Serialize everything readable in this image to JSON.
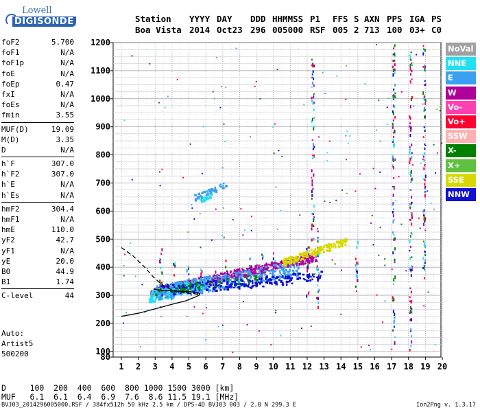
{
  "logo": {
    "top": "Lowell",
    "bottom": "DIGISONDE"
  },
  "header": {
    "row1": [
      "Station",
      "YYYY",
      "DAY",
      "DDD",
      "HHMMSS",
      "P1",
      "FFS",
      "S",
      "AXN",
      "PPS",
      "IGA",
      "PS"
    ],
    "row2": [
      "Boa Vista",
      "2014",
      "Oct23",
      "296",
      "005000",
      "RSF",
      "005",
      "2",
      "713",
      "100",
      "03+",
      "C0"
    ]
  },
  "params": [
    [
      {
        "k": "foF2",
        "v": "5.700"
      },
      {
        "k": "foF1",
        "v": "N/A"
      },
      {
        "k": "foF1p",
        "v": "N/A"
      },
      {
        "k": "foE",
        "v": "N/A"
      },
      {
        "k": "foEp",
        "v": "0.47"
      },
      {
        "k": "fxI",
        "v": "N/A"
      },
      {
        "k": "foEs",
        "v": "N/A"
      },
      {
        "k": "fmin",
        "v": "3.55"
      }
    ],
    [
      {
        "k": "MUF(D)",
        "v": "19.09"
      },
      {
        "k": "M(D)",
        "v": "3.35"
      },
      {
        "k": "D",
        "v": "N/A"
      }
    ],
    [
      {
        "k": "h`F",
        "v": "307.0"
      },
      {
        "k": "h`F2",
        "v": "307.0"
      },
      {
        "k": "h`E",
        "v": "N/A"
      },
      {
        "k": "h`Es",
        "v": "N/A"
      }
    ],
    [
      {
        "k": "hmF2",
        "v": "304.4"
      },
      {
        "k": "hmF1",
        "v": "N/A"
      },
      {
        "k": "hmE",
        "v": "110.0"
      },
      {
        "k": "yF2",
        "v": "42.7"
      },
      {
        "k": "yF1",
        "v": "N/A"
      },
      {
        "k": "yE",
        "v": "20.0"
      },
      {
        "k": "B0",
        "v": "44.9"
      },
      {
        "k": "B1",
        "v": "1.74"
      }
    ],
    [
      {
        "k": "C-level",
        "v": "44"
      }
    ]
  ],
  "auto": {
    "l1": "Auto:",
    "l2": "Artist5",
    "l3": "500200"
  },
  "legend": [
    {
      "label": "NoVal",
      "color": "#a0a0a0"
    },
    {
      "label": "NNE",
      "color": "#22e0f0"
    },
    {
      "label": "E",
      "color": "#3aa0f0"
    },
    {
      "label": "W",
      "color": "#b0009a"
    },
    {
      "label": "Vo-",
      "color": "#ff40b0"
    },
    {
      "label": "Vo+",
      "color": "#ff0030"
    },
    {
      "label": "SSW",
      "color": "#ffb0b0"
    },
    {
      "label": "X-",
      "color": "#008000"
    },
    {
      "label": "X+",
      "color": "#60c040"
    },
    {
      "label": "SSE",
      "color": "#d8d800"
    },
    {
      "label": "NNW",
      "color": "#1010d0"
    }
  ],
  "dtable": {
    "d_row": "D     100  200  400  600  800 1000 1500 3000 [km]",
    "muf_row": "MUF   6.1  6.1  6.4  6.9  7.6  8.6 11.5 19.1 [MHz]"
  },
  "footer": {
    "left": "BVJ03_2014296005000.RSF / 384fx512h 50 kHz 2.5 km / DPS-4D BVJ03 003 / 2.8 N 299.3 E",
    "right": "Ion2Png v. 1.3.17"
  },
  "chart_data": {
    "type": "scatter",
    "title": "",
    "xlabel": "",
    "ylabel": "",
    "xlim": [
      1,
      20
    ],
    "ylim": [
      80,
      1200
    ],
    "xticks": [
      1,
      2,
      3,
      4,
      5,
      6,
      7,
      8,
      9,
      10,
      11,
      12,
      13,
      14,
      15,
      16,
      17,
      18,
      19,
      20
    ],
    "yticks": [
      80,
      100,
      200,
      300,
      400,
      500,
      600,
      700,
      800,
      900,
      1000,
      1100,
      1200
    ],
    "grid": true,
    "traces": [
      {
        "style": "dashed",
        "points": [
          [
            1.0,
            470
          ],
          [
            1.7,
            440
          ],
          [
            2.3,
            405
          ],
          [
            2.9,
            365
          ],
          [
            3.4,
            338
          ],
          [
            3.9,
            322
          ],
          [
            4.4,
            312
          ],
          [
            5.0,
            306
          ],
          [
            5.6,
            304
          ]
        ]
      },
      {
        "style": "solid",
        "points": [
          [
            1.0,
            225
          ],
          [
            2.0,
            236
          ],
          [
            3.0,
            252
          ],
          [
            4.0,
            268
          ],
          [
            4.8,
            280
          ],
          [
            5.3,
            292
          ],
          [
            5.6,
            300
          ],
          [
            5.65,
            305
          ],
          [
            5.5,
            310
          ],
          [
            5.0,
            313
          ],
          [
            4.2,
            315
          ],
          [
            3.4,
            318
          ],
          [
            2.9,
            322
          ]
        ]
      }
    ],
    "echo_bands": [
      {
        "series": "W",
        "from": [
          2.7,
          312
        ],
        "to": [
          12.5,
          440
        ],
        "width": 16,
        "density": 520
      },
      {
        "series": "NNE",
        "from": [
          2.6,
          300
        ],
        "to": [
          6.0,
          345
        ],
        "width": 22,
        "density": 260
      },
      {
        "series": "E",
        "from": [
          3.0,
          310
        ],
        "to": [
          11.5,
          400
        ],
        "width": 28,
        "density": 380
      },
      {
        "series": "NNW",
        "from": [
          3.2,
          320
        ],
        "to": [
          12.8,
          370
        ],
        "width": 18,
        "density": 200
      },
      {
        "series": "SSE",
        "from": [
          10.5,
          420
        ],
        "to": [
          14.3,
          495
        ],
        "width": 12,
        "density": 160
      },
      {
        "series": "X-",
        "from": [
          3.0,
          315
        ],
        "to": [
          9.0,
          365
        ],
        "width": 12,
        "density": 50
      },
      {
        "series": "E",
        "from": [
          5.3,
          650
        ],
        "to": [
          7.2,
          700
        ],
        "width": 10,
        "density": 45
      },
      {
        "series": "NNE",
        "from": [
          5.6,
          640
        ],
        "to": [
          6.4,
          660
        ],
        "width": 6,
        "density": 20
      }
    ],
    "echo_columns": [
      {
        "x": 3.3,
        "from": 300,
        "to": 470
      },
      {
        "x": 4.1,
        "from": 300,
        "to": 420
      },
      {
        "x": 4.9,
        "from": 305,
        "to": 410
      },
      {
        "x": 5.7,
        "from": 310,
        "to": 400
      },
      {
        "x": 6.5,
        "from": 320,
        "to": 420
      },
      {
        "x": 7.2,
        "from": 330,
        "to": 440
      },
      {
        "x": 7.9,
        "from": 330,
        "to": 420
      },
      {
        "x": 8.6,
        "from": 340,
        "to": 440
      },
      {
        "x": 9.3,
        "from": 350,
        "to": 450
      },
      {
        "x": 10.0,
        "from": 360,
        "to": 460
      },
      {
        "x": 12.0,
        "from": 300,
        "to": 480
      },
      {
        "x": 12.6,
        "from": 260,
        "to": 560
      },
      {
        "x": 14.9,
        "from": 300,
        "to": 500
      },
      {
        "x": 17.1,
        "from": 90,
        "to": 1200
      },
      {
        "x": 18.1,
        "from": 90,
        "to": 1200
      },
      {
        "x": 18.9,
        "from": 350,
        "to": 1200
      },
      {
        "x": 12.3,
        "from": 500,
        "to": 1150
      }
    ],
    "noise_density": 180
  }
}
